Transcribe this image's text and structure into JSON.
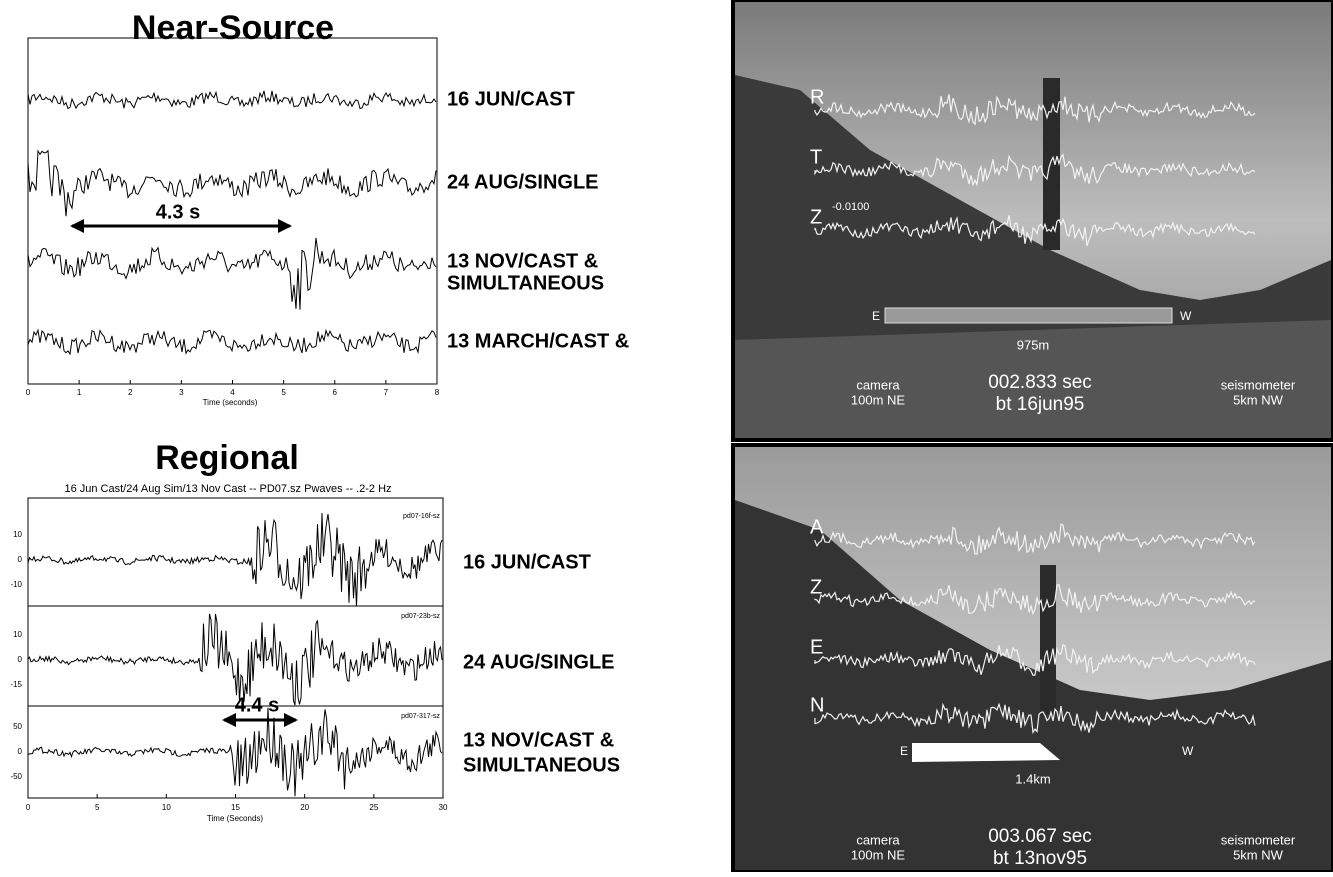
{
  "near_source": {
    "title": "Near-Source",
    "x_ticks": [
      "0",
      "1",
      "2",
      "3",
      "4",
      "5",
      "6",
      "7",
      "8"
    ],
    "x_label": "Time (seconds)",
    "annotation": "4.3 s",
    "traces": [
      {
        "label": [
          "16 JUN/CAST"
        ]
      },
      {
        "label": [
          "24 AUG/SINGLE"
        ]
      },
      {
        "label": [
          "13 NOV/CAST &",
          "SIMULTANEOUS"
        ]
      },
      {
        "label": [
          "13 MARCH/CAST &"
        ]
      }
    ]
  },
  "regional": {
    "title": "Regional",
    "subtitle": "16 Jun Cast/24 Aug Sim/13 Nov Cast -- PD07.sz Pwaves -- .2-2 Hz",
    "x_ticks": [
      "0",
      "5",
      "10",
      "15",
      "20",
      "25",
      "30"
    ],
    "x_label": "Time (Seconds)",
    "annotation": "4.4 s",
    "traces": [
      {
        "label": [
          "16 JUN/CAST"
        ],
        "tag": "pd07-16f-sz",
        "y_ticks": [
          "10",
          "0",
          "-10"
        ]
      },
      {
        "label": [
          "24 AUG/SINGLE"
        ],
        "tag": "pd07-23b-sz",
        "y_ticks": [
          "10",
          "0",
          "-15"
        ]
      },
      {
        "label": [
          "13 NOV/CAST &",
          "SIMULTANEOUS"
        ],
        "tag": "pd07-317-sz",
        "y_ticks": [
          "50",
          "0",
          "-50"
        ]
      }
    ]
  },
  "photos": [
    {
      "channels": [
        "R",
        "T",
        "Z"
      ],
      "amplitude": "-0.0100",
      "left_end": "E",
      "right_end": "W",
      "distance": "975m",
      "camera": [
        "camera",
        "100m NE"
      ],
      "time": "002.833 sec",
      "date": "bt 16jun95",
      "seismometer": [
        "seismometer",
        "5km NW"
      ]
    },
    {
      "channels": [
        "A",
        "Z",
        "E",
        "N"
      ],
      "left_end": "E",
      "right_end": "W",
      "distance": "1.4km",
      "camera": [
        "camera",
        "100m NE"
      ],
      "time": "003.067 sec",
      "date": "bt 13nov95",
      "seismometer": [
        "seismometer",
        "5km NW"
      ]
    }
  ]
}
